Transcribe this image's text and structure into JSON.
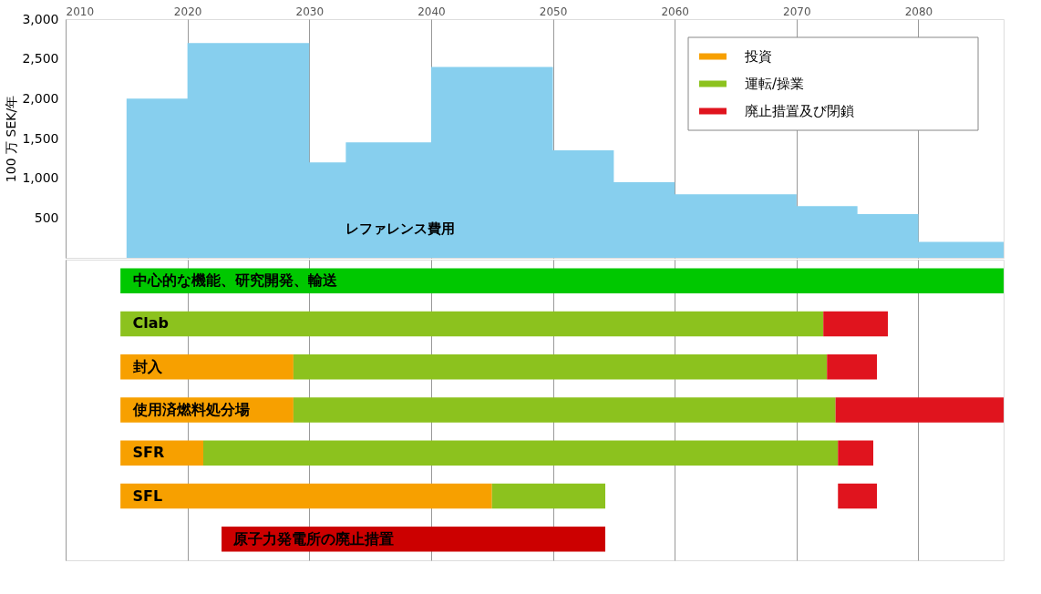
{
  "chart_data": [
    {
      "type": "area",
      "ylabel": "100 万 SEK/年",
      "xlim": [
        2010,
        2087
      ],
      "xticks": [
        2010,
        2020,
        2030,
        2040,
        2050,
        2060,
        2070,
        2080
      ],
      "ylim": [
        0,
        3000
      ],
      "yticks": [
        {
          "value": 500,
          "label": "500"
        },
        {
          "value": 1000,
          "label": "1,000"
        },
        {
          "value": 1500,
          "label": "1,500"
        },
        {
          "value": 2000,
          "label": "2,000"
        },
        {
          "value": 2500,
          "label": "2,500"
        },
        {
          "value": 3000,
          "label": "3,000"
        }
      ],
      "grid": "x",
      "series": [
        {
          "name": "レファレンス費用",
          "color": "#87cfee",
          "x": [
            2015,
            2020,
            2020,
            2030,
            2030,
            2033,
            2033,
            2040,
            2040,
            2045,
            2045,
            2050,
            2050,
            2055,
            2055,
            2060,
            2060,
            2065,
            2065,
            2070,
            2070,
            2075,
            2075,
            2080,
            2080,
            2087
          ],
          "values": [
            2000,
            2000,
            2700,
            2700,
            1200,
            1200,
            1450,
            1450,
            2400,
            2400,
            2400,
            2400,
            1350,
            1350,
            950,
            950,
            800,
            800,
            800,
            800,
            650,
            650,
            550,
            550,
            200,
            200
          ]
        }
      ]
    },
    {
      "type": "bar",
      "orientation": "horizontal",
      "xlim": [
        2010,
        2087
      ],
      "xticks": [
        2010,
        2020,
        2030,
        2040,
        2050,
        2060,
        2070,
        2080
      ],
      "grid": "x",
      "tick_labels": false,
      "legend": "top right",
      "categories": [
        "中心的な機能、研究開発、輸送",
        "Clab",
        "封入",
        "使用済燃料処分場",
        "SFR",
        "SFL",
        "原子力発電所の廃止措置"
      ],
      "series": [
        {
          "color": "#00c800",
          "base": [
            2014.5,
            null,
            null,
            null,
            null,
            null,
            null
          ],
          "values": [
            72.5,
            null,
            null,
            null,
            null,
            null,
            null
          ]
        },
        {
          "name": "投資",
          "color": "#f7a000",
          "base": [
            null,
            null,
            2014.5,
            2014.5,
            2014.5,
            2014.5,
            null
          ],
          "values": [
            null,
            null,
            14.2,
            14.2,
            6.8,
            30.5,
            null
          ]
        },
        {
          "name": "運転/操業",
          "color": "#8cc21e",
          "base": [
            null,
            2014.5,
            2028.7,
            2028.7,
            2021.3,
            2045,
            null
          ],
          "values": [
            null,
            57.7,
            43.8,
            44.5,
            52.1,
            9.3,
            null
          ]
        },
        {
          "name": "廃止措置及び閉鎖",
          "color": "#e0141e",
          "base": [
            null,
            2072.2,
            2072.5,
            2073.2,
            2073.4,
            2073.4,
            null
          ],
          "values": [
            null,
            5.3,
            4.1,
            13.8,
            2.9,
            3.2,
            null
          ]
        },
        {
          "color": "#cc0000",
          "base": [
            null,
            null,
            null,
            null,
            null,
            null,
            2022.8
          ],
          "values": [
            null,
            null,
            null,
            null,
            null,
            null,
            31.5
          ]
        }
      ]
    }
  ]
}
